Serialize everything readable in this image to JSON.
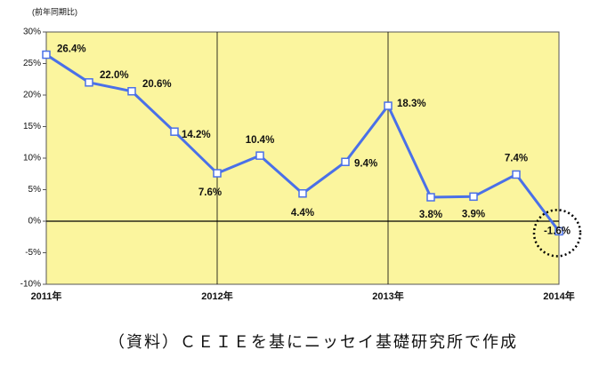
{
  "chart_data": {
    "type": "line",
    "y_axis_label": "(前年同期比)",
    "caption": "（資料）ＣＥＩＥを基にニッセイ基礎研究所で作成",
    "categories": [
      "2011年",
      null,
      null,
      null,
      "2012年",
      null,
      null,
      null,
      "2013年",
      null,
      null,
      null,
      "2014年"
    ],
    "series": [
      {
        "color": "#4a70e8",
        "values": [
          26.4,
          22.0,
          20.6,
          14.2,
          7.6,
          10.4,
          4.4,
          9.4,
          18.3,
          3.8,
          3.9,
          7.4,
          -1.6
        ],
        "value_labels": [
          "26.4%",
          "22.0%",
          "20.6%",
          "14.2%",
          "7.6%",
          "10.4%",
          "4.4%",
          "9.4%",
          "18.3%",
          "3.8%",
          "3.9%",
          "7.4%",
          "-1.6%"
        ]
      }
    ],
    "ylim": [
      -10,
      30
    ],
    "yticks": [
      {
        "value": -10,
        "label": "-10%"
      },
      {
        "value": -5,
        "label": "-5%"
      },
      {
        "value": 0,
        "label": "0%"
      },
      {
        "value": 5,
        "label": "5%"
      },
      {
        "value": 10,
        "label": "10%"
      },
      {
        "value": 15,
        "label": "15%"
      },
      {
        "value": 20,
        "label": "20%"
      },
      {
        "value": 25,
        "label": "25%"
      },
      {
        "value": 30,
        "label": "30%"
      }
    ],
    "background": "#fbf59e"
  }
}
